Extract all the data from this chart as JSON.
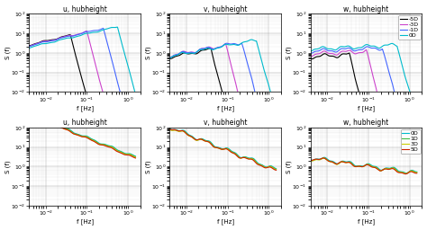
{
  "row1_titles": [
    "u, hubheight",
    "v, hubheight",
    "w, hubheight"
  ],
  "row2_titles": [
    "u, hubheight",
    "v, hubheight",
    "w, hubheight"
  ],
  "xlabel": "f [Hz]",
  "ylabel": "S (f)",
  "xlim": [
    0.004,
    2.0
  ],
  "ylim": [
    0.01,
    100
  ],
  "row1_legend": [
    "-5D",
    "-3D",
    "-1D",
    "0D"
  ],
  "row2_legend": [
    "0D",
    "1D",
    "3D",
    "5D"
  ],
  "row1_colors": [
    "#000000",
    "#cc44cc",
    "#4466ff",
    "#00bbcc"
  ],
  "row2_colors": [
    "#00bbcc",
    "#44bb44",
    "#cccc00",
    "#cc2200"
  ],
  "background": "#ffffff",
  "lw": 0.8
}
